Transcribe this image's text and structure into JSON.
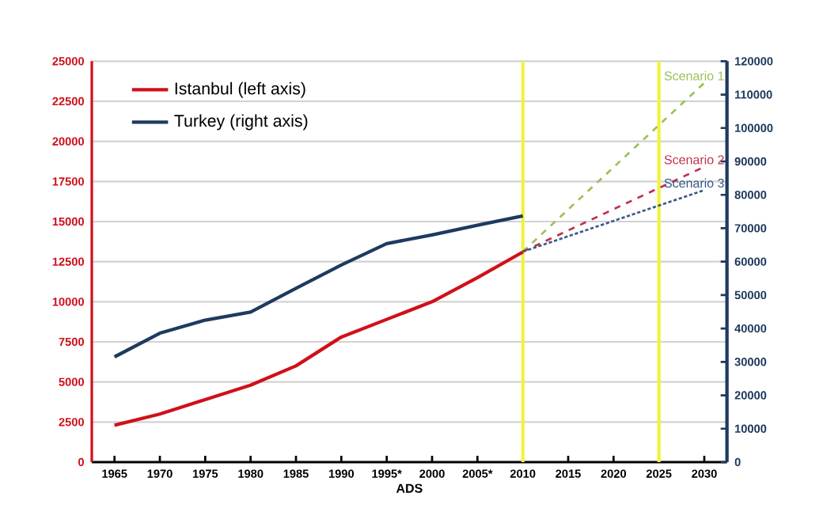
{
  "chart_data": {
    "type": "line",
    "xlabel": "ADS",
    "categories": [
      "1965",
      "1970",
      "1975",
      "1980",
      "1985",
      "1990",
      "1995*",
      "2000",
      "2005*",
      "2010",
      "2015",
      "2020",
      "2025",
      "2030"
    ],
    "series": [
      {
        "name": "Istanbul (left axis)",
        "color": "#d0101a",
        "values": [
          2300,
          3000,
          3900,
          4800,
          6000,
          7800,
          8900,
          10000,
          11500,
          13100,
          null,
          null,
          null,
          null
        ]
      },
      {
        "name": "Turkey (right axis)",
        "color": "#1f3a5f",
        "axis": "y2",
        "values": [
          31500,
          38600,
          42500,
          44900,
          52000,
          59000,
          65400,
          68000,
          70900,
          73700,
          null,
          null,
          null,
          null
        ]
      },
      {
        "name": "Scenario 1",
        "color": "#9ac15a",
        "axis": "y2",
        "line_style": "dashed",
        "values": [
          null,
          null,
          null,
          null,
          null,
          null,
          null,
          null,
          null,
          63000,
          null,
          null,
          null,
          113500
        ]
      },
      {
        "name": "Scenario 2",
        "color": "#c0304a",
        "axis": "y2",
        "line_style": "dashed",
        "values": [
          null,
          null,
          null,
          null,
          null,
          null,
          null,
          null,
          null,
          63000,
          null,
          null,
          null,
          88400
        ]
      },
      {
        "name": "Scenario 3",
        "color": "#3a5a8a",
        "axis": "y2",
        "line_style": "dotted",
        "values": [
          null,
          null,
          null,
          null,
          null,
          null,
          null,
          null,
          null,
          63000,
          null,
          null,
          null,
          81400
        ]
      }
    ],
    "ylim": [
      0,
      25000
    ],
    "yticks": [
      0,
      2500,
      5000,
      7500,
      10000,
      12500,
      15000,
      17500,
      20000,
      22500,
      25000
    ],
    "y2lim": [
      0,
      120000
    ],
    "y2ticks": [
      0,
      10000,
      20000,
      30000,
      40000,
      50000,
      60000,
      70000,
      80000,
      90000,
      100000,
      110000,
      120000
    ],
    "ref_lines": [
      {
        "axis": "x",
        "value": "2010",
        "color": "#f2f23a"
      },
      {
        "axis": "x",
        "value": "2025",
        "color": "#f2f23a"
      }
    ],
    "grid": "y",
    "legend": "top left"
  }
}
